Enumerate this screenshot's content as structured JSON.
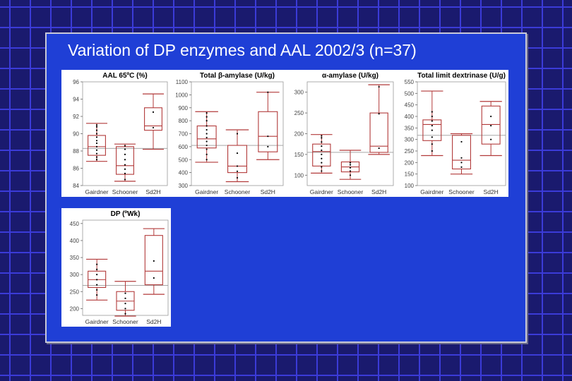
{
  "slide": {
    "title": "Variation of DP enzymes and AAL 2002/3 (n=37)"
  },
  "colors": {
    "background": "#1a1a6e",
    "slide": "#1f3fd6",
    "grid_lines": "#3b3bd8",
    "box": "#b23a3a",
    "ref_line": "#9a9a9a",
    "points": "#000000"
  },
  "chart_data": [
    {
      "type": "box",
      "title": "AAL 65ºC (%)",
      "categories": [
        "Gairdner",
        "Schooner",
        "Sd2H"
      ],
      "ylim": [
        84,
        96
      ],
      "yticks": [
        84,
        86,
        88,
        90,
        92,
        94,
        96
      ],
      "ref_line": 88.3,
      "boxes": [
        {
          "whisker_low": 86.8,
          "q1": 87.5,
          "median": 88.5,
          "q3": 89.8,
          "whisker_high": 91.2,
          "points": [
            87.0,
            87.3,
            87.7,
            88.1,
            88.5,
            88.9,
            89.2,
            89.6,
            90.0,
            90.4,
            90.8,
            91.0
          ]
        },
        {
          "whisker_low": 84.5,
          "q1": 85.3,
          "median": 86.3,
          "q3": 88.5,
          "whisker_high": 88.8,
          "points": [
            84.7,
            85.4,
            85.9,
            86.4,
            87.0,
            87.6,
            88.2,
            88.6
          ]
        },
        {
          "whisker_low": 88.2,
          "q1": 90.4,
          "median": 90.9,
          "q3": 93.0,
          "whisker_high": 94.6,
          "points": [
            90.7,
            92.5
          ]
        }
      ]
    },
    {
      "type": "box",
      "title": "Total β-amylase (U/kg)",
      "categories": [
        "Gairdner",
        "Schooner",
        "Sd2H"
      ],
      "ylim": [
        300,
        1100
      ],
      "yticks": [
        300,
        400,
        500,
        600,
        700,
        800,
        900,
        1000,
        1100
      ],
      "ref_line": 610,
      "boxes": [
        {
          "whisker_low": 480,
          "q1": 590,
          "median": 660,
          "q3": 760,
          "whisker_high": 870,
          "points": [
            500,
            540,
            580,
            610,
            640,
            670,
            700,
            730,
            760,
            800,
            830,
            860
          ]
        },
        {
          "whisker_low": 330,
          "q1": 400,
          "median": 450,
          "q3": 610,
          "whisker_high": 730,
          "points": [
            360,
            410,
            450,
            550,
            700
          ]
        },
        {
          "whisker_low": 500,
          "q1": 560,
          "median": 680,
          "q3": 870,
          "whisker_high": 1020,
          "points": [
            600,
            680,
            1020
          ]
        }
      ]
    },
    {
      "type": "box",
      "title": "α-amylase (U/kg)",
      "categories": [
        "Gairdner",
        "Schooner",
        "Sd2H"
      ],
      "ylim": [
        75,
        325
      ],
      "yticks": [
        100,
        150,
        200,
        250,
        300
      ],
      "ref_line": 155,
      "boxes": [
        {
          "whisker_low": 105,
          "q1": 122,
          "median": 157,
          "q3": 175,
          "whisker_high": 198,
          "points": [
            110,
            120,
            130,
            140,
            150,
            160,
            170,
            180,
            190,
            195
          ]
        },
        {
          "whisker_low": 90,
          "q1": 108,
          "median": 120,
          "q3": 132,
          "whisker_high": 160,
          "points": [
            100,
            110,
            118,
            125,
            130
          ]
        },
        {
          "whisker_low": 150,
          "q1": 155,
          "median": 170,
          "q3": 250,
          "whisker_high": 318,
          "points": [
            165,
            248,
            313
          ]
        }
      ]
    },
    {
      "type": "box",
      "title": "Total limit dextrinase (U/g)",
      "categories": [
        "Gairdner",
        "Schooner",
        "Sd2H"
      ],
      "ylim": [
        100,
        550
      ],
      "yticks": [
        100,
        150,
        200,
        250,
        300,
        350,
        400,
        450,
        500,
        550
      ],
      "ref_line": 318,
      "boxes": [
        {
          "whisker_low": 230,
          "q1": 295,
          "median": 365,
          "q3": 385,
          "whisker_high": 510,
          "points": [
            250,
            280,
            310,
            340,
            360,
            380,
            400,
            420
          ]
        },
        {
          "whisker_low": 150,
          "q1": 172,
          "median": 210,
          "q3": 318,
          "whisker_high": 325,
          "points": [
            180,
            200,
            220,
            290
          ]
        },
        {
          "whisker_low": 230,
          "q1": 280,
          "median": 365,
          "q3": 445,
          "whisker_high": 465,
          "points": [
            300,
            360,
            400
          ]
        }
      ]
    },
    {
      "type": "box",
      "title": "DP (ºWk)",
      "categories": [
        "Gairdner",
        "Schooner",
        "Sd2H"
      ],
      "ylim": [
        180,
        460
      ],
      "yticks": [
        200,
        250,
        300,
        350,
        400,
        450
      ],
      "ref_line": 268,
      "boxes": [
        {
          "whisker_low": 225,
          "q1": 262,
          "median": 285,
          "q3": 310,
          "whisker_high": 345,
          "points": [
            240,
            255,
            270,
            285,
            300,
            315,
            330
          ]
        },
        {
          "whisker_low": 178,
          "q1": 195,
          "median": 222,
          "q3": 250,
          "whisker_high": 280,
          "points": [
            185,
            200,
            215,
            230,
            245
          ]
        },
        {
          "whisker_low": 242,
          "q1": 270,
          "median": 310,
          "q3": 415,
          "whisker_high": 435,
          "points": [
            290,
            340
          ]
        }
      ]
    }
  ]
}
